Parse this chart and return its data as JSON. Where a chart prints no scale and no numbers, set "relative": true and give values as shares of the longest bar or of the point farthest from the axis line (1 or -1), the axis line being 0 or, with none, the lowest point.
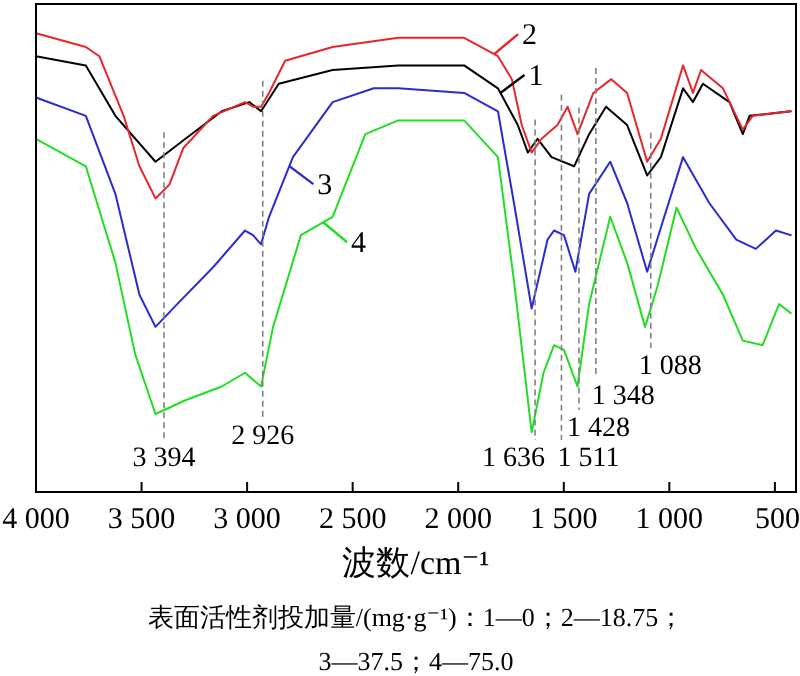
{
  "chart_data": {
    "type": "line",
    "relative": true,
    "legend": "top",
    "xlabel": "波数/cm⁻¹",
    "xlim": [
      4000,
      400
    ],
    "xticks": [
      {
        "value": 4000,
        "label": "4 000"
      },
      {
        "value": 3500,
        "label": "3 500"
      },
      {
        "value": 3000,
        "label": "3 000"
      },
      {
        "value": 2500,
        "label": "2 500"
      },
      {
        "value": 2000,
        "label": "2 000"
      },
      {
        "value": 1500,
        "label": "1 500"
      },
      {
        "value": 1000,
        "label": "1 000"
      },
      500
    ],
    "series": [
      {
        "name": "1",
        "color": "#000000",
        "x": [
          4000,
          3764,
          3624,
          3434,
          3292,
          3120,
          2990,
          2934,
          2850,
          2595,
          2284,
          1972,
          1812,
          1718,
          1670,
          1624,
          1558,
          1451,
          1380,
          1300,
          1200,
          1105,
          1040,
          935,
          888,
          841,
          715,
          652,
          620,
          425
        ],
        "values": [
          0.95,
          0.93,
          0.82,
          0.72,
          0.77,
          0.83,
          0.85,
          0.83,
          0.89,
          0.92,
          0.93,
          0.93,
          0.88,
          0.8,
          0.74,
          0.77,
          0.73,
          0.71,
          0.78,
          0.84,
          0.8,
          0.69,
          0.73,
          0.88,
          0.85,
          0.89,
          0.85,
          0.78,
          0.82,
          0.83
        ]
      },
      {
        "name": "2",
        "color": "#e8262a",
        "x": [
          4000,
          3764,
          3700,
          3585,
          3510,
          3434,
          3368,
          3302,
          3161,
          3010,
          2972,
          2934,
          2896,
          2820,
          2595,
          2284,
          1972,
          1812,
          1746,
          1699,
          1652,
          1605,
          1530,
          1482,
          1435,
          1360,
          1275,
          1200,
          1105,
          1040,
          935,
          888,
          850,
          746,
          652,
          605,
          425
        ],
        "values": [
          1.0,
          0.97,
          0.95,
          0.82,
          0.71,
          0.64,
          0.67,
          0.75,
          0.82,
          0.85,
          0.84,
          0.84,
          0.87,
          0.94,
          0.97,
          0.99,
          0.99,
          0.95,
          0.9,
          0.8,
          0.74,
          0.77,
          0.8,
          0.84,
          0.78,
          0.87,
          0.9,
          0.87,
          0.72,
          0.77,
          0.93,
          0.87,
          0.92,
          0.88,
          0.79,
          0.82,
          0.83
        ]
      },
      {
        "name": "3",
        "color": "#2b2bd0",
        "x": [
          4000,
          3764,
          3624,
          3510,
          3434,
          3330,
          3161,
          3010,
          2972,
          2934,
          2896,
          2783,
          2595,
          2400,
          2284,
          1972,
          1812,
          1736,
          1652,
          1577,
          1546,
          1499,
          1445,
          1380,
          1280,
          1200,
          1105,
          1024,
          935,
          811,
          683,
          590,
          495,
          425
        ],
        "values": [
          0.86,
          0.82,
          0.65,
          0.43,
          0.36,
          0.41,
          0.49,
          0.57,
          0.56,
          0.54,
          0.6,
          0.73,
          0.85,
          0.88,
          0.88,
          0.87,
          0.83,
          0.63,
          0.4,
          0.55,
          0.57,
          0.56,
          0.48,
          0.65,
          0.72,
          0.63,
          0.48,
          0.6,
          0.73,
          0.63,
          0.55,
          0.53,
          0.57,
          0.56
        ]
      },
      {
        "name": "4",
        "color": "#22dd22",
        "x": [
          4000,
          3764,
          3624,
          3530,
          3434,
          3292,
          3120,
          3010,
          2934,
          2877,
          2745,
          2595,
          2440,
          2284,
          1972,
          1812,
          1736,
          1652,
          1596,
          1546,
          1499,
          1435,
          1380,
          1280,
          1200,
          1115,
          1055,
          966,
          873,
          746,
          652,
          558,
          480,
          425
        ],
        "values": [
          0.77,
          0.71,
          0.5,
          0.3,
          0.17,
          0.2,
          0.23,
          0.26,
          0.23,
          0.36,
          0.56,
          0.6,
          0.78,
          0.81,
          0.81,
          0.73,
          0.46,
          0.13,
          0.26,
          0.32,
          0.31,
          0.23,
          0.41,
          0.6,
          0.5,
          0.36,
          0.45,
          0.62,
          0.53,
          0.43,
          0.33,
          0.32,
          0.41,
          0.39
        ]
      }
    ],
    "ref_lines": [
      {
        "axis": "x",
        "value": 3394,
        "label": "3 394",
        "line_style": "dashed",
        "color": "#808080"
      },
      {
        "axis": "x",
        "value": 2926,
        "label": "2 926",
        "line_style": "dashed",
        "color": "#808080"
      },
      {
        "axis": "x",
        "value": 1636,
        "label": "1 636",
        "line_style": "dashed",
        "color": "#808080"
      },
      {
        "axis": "x",
        "value": 1511,
        "label": "1 511",
        "line_style": "dashed",
        "color": "#808080"
      },
      {
        "axis": "x",
        "value": 1428,
        "label": "1 428",
        "line_style": "dashed",
        "color": "#808080"
      },
      {
        "axis": "x",
        "value": 1348,
        "label": "1 348",
        "line_style": "dashed",
        "color": "#808080"
      },
      {
        "axis": "x",
        "value": 1088,
        "label": "1 088",
        "line_style": "dashed",
        "color": "#808080"
      }
    ],
    "annotations": [
      "表面活性剂投加量/(mg·g⁻¹)：1—0；2—18.75；",
      "3—37.5；4—75.0"
    ]
  }
}
